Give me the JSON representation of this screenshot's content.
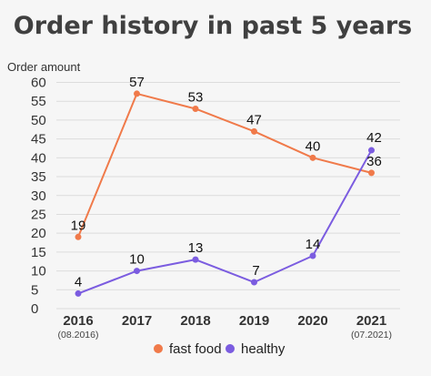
{
  "chart_data": {
    "type": "line",
    "title": "Order history in past 5 years",
    "ylabel": "Order amount",
    "xlabel": "",
    "categories": [
      "2016",
      "2017",
      "2018",
      "2019",
      "2020",
      "2021"
    ],
    "category_notes": [
      "(08.2016)",
      "",
      "",
      "",
      "",
      "(07.2021)"
    ],
    "yticks": [
      0,
      5,
      10,
      15,
      20,
      25,
      30,
      35,
      40,
      45,
      50,
      55,
      60
    ],
    "ylim": [
      0,
      62
    ],
    "grid": true,
    "legend_position": "bottom",
    "series": [
      {
        "name": "fast food",
        "color": "#f07a4a",
        "values": [
          19,
          57,
          53,
          47,
          40,
          36
        ]
      },
      {
        "name": "healthy",
        "color": "#7b5ce0",
        "values": [
          4,
          10,
          13,
          7,
          14,
          42
        ]
      }
    ]
  }
}
